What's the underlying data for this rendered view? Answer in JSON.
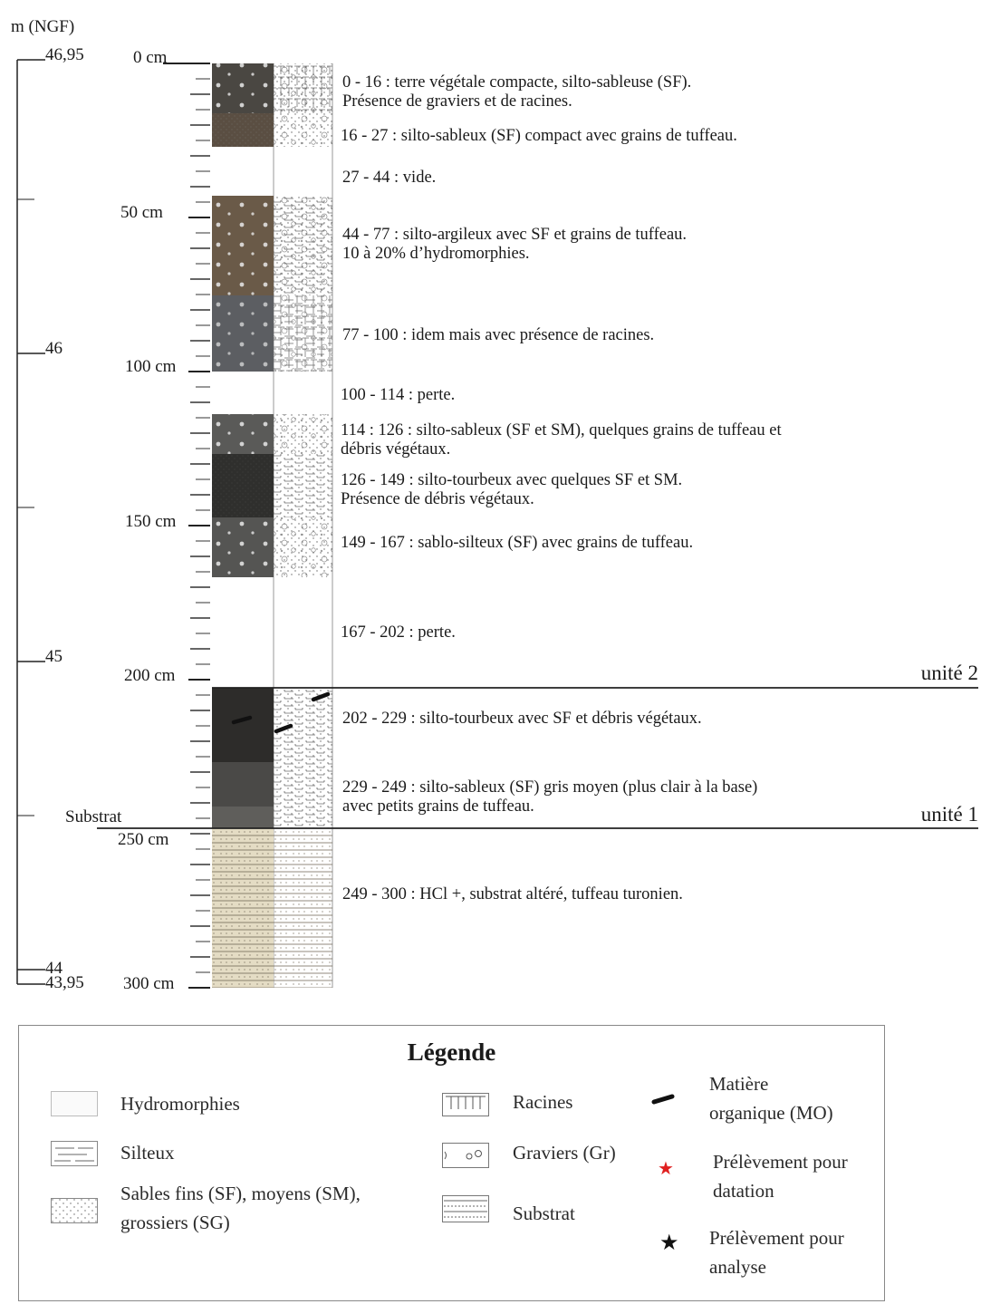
{
  "axis": {
    "ngf_label": "m (NGF)",
    "ngf_ticks": [
      "46,95",
      "46",
      "45",
      "44",
      "43,95"
    ],
    "depth_ticks": [
      "0 cm",
      "50 cm",
      "100 cm",
      "150 cm",
      "200 cm",
      "250 cm",
      "300 cm"
    ],
    "substrat_label": "Substrat"
  },
  "layers": [
    {
      "range": "0 - 16",
      "text": [
        " : terre végétale compacte, silto-sableuse (SF).",
        "Présence de graviers et de racines."
      ],
      "color": "#4a4742"
    },
    {
      "range": "16 - 27",
      "text": [
        " : silto-sableux (SF) compact avec grains de tuffeau."
      ],
      "color": "#5a4e42"
    },
    {
      "range": "27 - 44",
      "text": [
        " : vide."
      ],
      "color": "#ffffff"
    },
    {
      "range": "44 - 77",
      "text": [
        " : silto-argileux avec SF et grains de tuffeau.",
        "10 à 20% d’hydromorphies."
      ],
      "color": "#6a5a48"
    },
    {
      "range": "77 - 100",
      "text": [
        " : idem mais avec présence de racines."
      ],
      "color": "#5c5e62"
    },
    {
      "range": "100 - 114",
      "text": [
        " : perte."
      ],
      "color": "#ffffff"
    },
    {
      "range": "114 : 126",
      "text": [
        " : silto-sableux (SF et SM), quelques grains de tuffeau et",
        "débris végétaux."
      ],
      "color": "#5a5a58"
    },
    {
      "range": "126 - 149",
      "text": [
        " : silto-tourbeux avec quelques SF et SM.",
        "Présence de débris végétaux."
      ],
      "color": "#2f2f2d"
    },
    {
      "range": "149 - 167",
      "text": [
        " : sablo-silteux (SF) avec grains de tuffeau."
      ],
      "color": "#555553"
    },
    {
      "range": "167 - 202",
      "text": [
        " : perte."
      ],
      "color": "#ffffff"
    },
    {
      "range": "202 - 229",
      "text": [
        " : silto-tourbeux avec SF et débris végétaux."
      ],
      "color": "#2d2c2a"
    },
    {
      "range": "229 - 249",
      "text": [
        " : silto-sableux (SF) gris moyen (plus clair à la base)",
        "avec petits grains de tuffeau."
      ],
      "color": "#4a4947"
    },
    {
      "range": "249 - 300",
      "text": [
        " : HCl +, substrat altéré, tuffeau turonien."
      ],
      "color": "#e4dcc4"
    }
  ],
  "units": [
    "unité 2",
    "unité 1"
  ],
  "legend": {
    "title": "Légende",
    "items": {
      "hydromorphies": "Hydromorphies",
      "silteux": "Silteux",
      "sables_1": "Sables fins (SF), moyens (SM),",
      "sables_2": "grossiers (SG)",
      "racines": "Racines",
      "graviers": "Graviers (Gr)",
      "substrat": "Substrat",
      "mo_1": "Matière",
      "mo_2": "organique (MO)",
      "datation_1": "Prélèvement pour",
      "datation_2": "datation",
      "analyse_1": "Prélèvement pour",
      "analyse_2": "analyse"
    },
    "star_colors": {
      "datation": "#e02020",
      "analyse": "#111111"
    }
  }
}
